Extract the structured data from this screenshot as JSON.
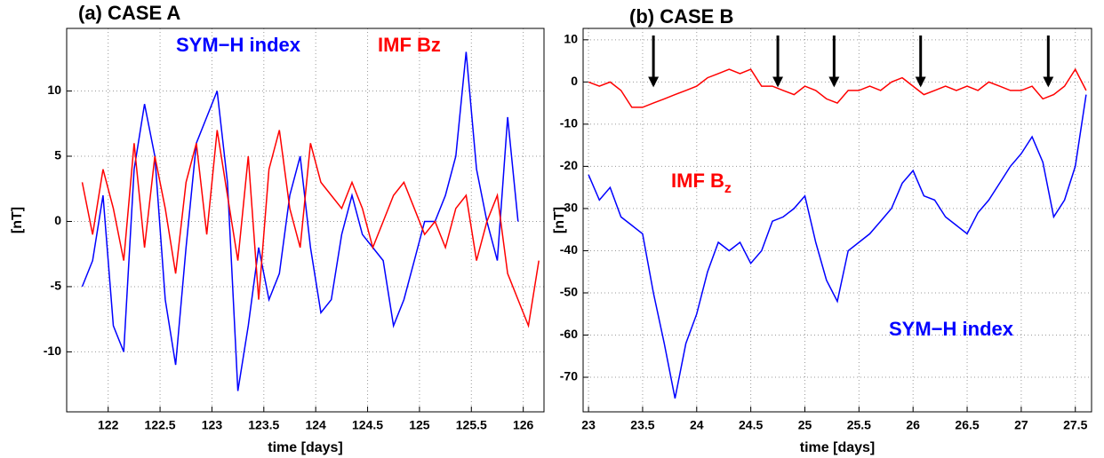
{
  "chart_data": [
    {
      "type": "line",
      "title": "(a) CASE A",
      "xlabel": "time [days]",
      "ylabel": "[nT]",
      "x": [
        121.75,
        121.85,
        121.95,
        122.05,
        122.15,
        122.25,
        122.35,
        122.45,
        122.55,
        122.65,
        122.75,
        122.85,
        122.95,
        123.05,
        123.15,
        123.25,
        123.35,
        123.45,
        123.55,
        123.65,
        123.75,
        123.85,
        123.95,
        124.05,
        124.15,
        124.25,
        124.35,
        124.45,
        124.55,
        124.65,
        124.75,
        124.85,
        124.95,
        125.05,
        125.15,
        125.25,
        125.35,
        125.45,
        125.55,
        125.65,
        125.75,
        125.85,
        125.95,
        126.05,
        126.15
      ],
      "series": [
        {
          "name": "SYM−H index",
          "color": "#0000ff",
          "values": [
            -5,
            -3,
            2,
            -8,
            -10,
            4,
            9,
            5,
            -6,
            -11,
            -2,
            6,
            8,
            10,
            3,
            -13,
            -8,
            -2,
            -6,
            -4,
            2,
            5,
            -2,
            -7,
            -6,
            -1,
            2,
            -1,
            -2,
            -3,
            -8,
            -6,
            -3,
            0,
            0,
            2,
            5,
            13,
            4,
            0,
            -3,
            8,
            0,
            null,
            null
          ]
        },
        {
          "name": "IMF Bz",
          "color": "#ff0000",
          "values": [
            3,
            -1,
            4,
            1,
            -3,
            6,
            -2,
            5,
            1,
            -4,
            3,
            6,
            -1,
            7,
            2,
            -3,
            5,
            -6,
            4,
            7,
            1,
            -2,
            6,
            3,
            2,
            1,
            3,
            1,
            -2,
            0,
            2,
            3,
            1,
            -1,
            0,
            -2,
            1,
            2,
            -3,
            0,
            2,
            -4,
            -6,
            -8,
            -3
          ]
        }
      ],
      "annotations": [
        {
          "text": "SYM−H index",
          "color": "#0000ff"
        },
        {
          "text": "IMF Bz",
          "color": "#ff0000"
        }
      ],
      "xlim": [
        121.6,
        126.2
      ],
      "xticks": [
        122,
        122.5,
        123,
        123.5,
        124,
        124.5,
        125,
        125.5,
        126
      ],
      "ylim": [
        -14.6,
        14.8
      ],
      "yticks": [
        -10,
        -5,
        0,
        5,
        10
      ],
      "grid": true
    },
    {
      "type": "line",
      "title": "(b) CASE B",
      "xlabel": "time [days]",
      "ylabel": "[nT]",
      "x": [
        23.0,
        23.1,
        23.2,
        23.3,
        23.4,
        23.5,
        23.6,
        23.7,
        23.8,
        23.9,
        24.0,
        24.1,
        24.2,
        24.3,
        24.4,
        24.5,
        24.6,
        24.7,
        24.8,
        24.9,
        25.0,
        25.1,
        25.2,
        25.3,
        25.4,
        25.5,
        25.6,
        25.7,
        25.8,
        25.9,
        26.0,
        26.1,
        26.2,
        26.3,
        26.4,
        26.5,
        26.6,
        26.7,
        26.8,
        26.9,
        27.0,
        27.1,
        27.2,
        27.3,
        27.4,
        27.5,
        27.6
      ],
      "series": [
        {
          "name": "IMF Bz",
          "color": "#ff0000",
          "values": [
            0,
            -1,
            0,
            -2,
            -6,
            -6,
            -5,
            -4,
            -3,
            -2,
            -1,
            1,
            2,
            3,
            2,
            3,
            -1,
            -1,
            -2,
            -3,
            -1,
            -2,
            -4,
            -5,
            -2,
            -2,
            -1,
            -2,
            0,
            1,
            -1,
            -3,
            -2,
            -1,
            -2,
            -1,
            -2,
            0,
            -1,
            -2,
            -2,
            -1,
            -4,
            -3,
            -1,
            3,
            -2
          ]
        },
        {
          "name": "SYM−H index",
          "color": "#0000ff",
          "values": [
            -22,
            -28,
            -25,
            -32,
            -34,
            -36,
            -50,
            -62,
            -75,
            -62,
            -55,
            -45,
            -38,
            -40,
            -38,
            -43,
            -40,
            -33,
            -32,
            -30,
            -27,
            -38,
            -47,
            -52,
            -40,
            -38,
            -36,
            -33,
            -30,
            -24,
            -21,
            -27,
            -28,
            -32,
            -34,
            -36,
            -31,
            -28,
            -24,
            -20,
            -17,
            -13,
            -19,
            -32,
            -28,
            -20,
            -3
          ]
        }
      ],
      "annotations": [
        {
          "text": "IMF B",
          "subscript": "z",
          "color": "#ff0000"
        },
        {
          "text": "SYM−H index",
          "color": "#0000ff"
        }
      ],
      "event_times": [
        23.6,
        24.75,
        25.27,
        26.07,
        27.25
      ],
      "xlim": [
        22.95,
        27.65
      ],
      "xticks": [
        23,
        23.5,
        24,
        24.5,
        25,
        25.5,
        26,
        26.5,
        27,
        27.5
      ],
      "ylim": [
        -78.2,
        12.7
      ],
      "yticks": [
        -70,
        -60,
        -50,
        -40,
        -30,
        -20,
        -10,
        0,
        10
      ],
      "grid": true
    }
  ]
}
